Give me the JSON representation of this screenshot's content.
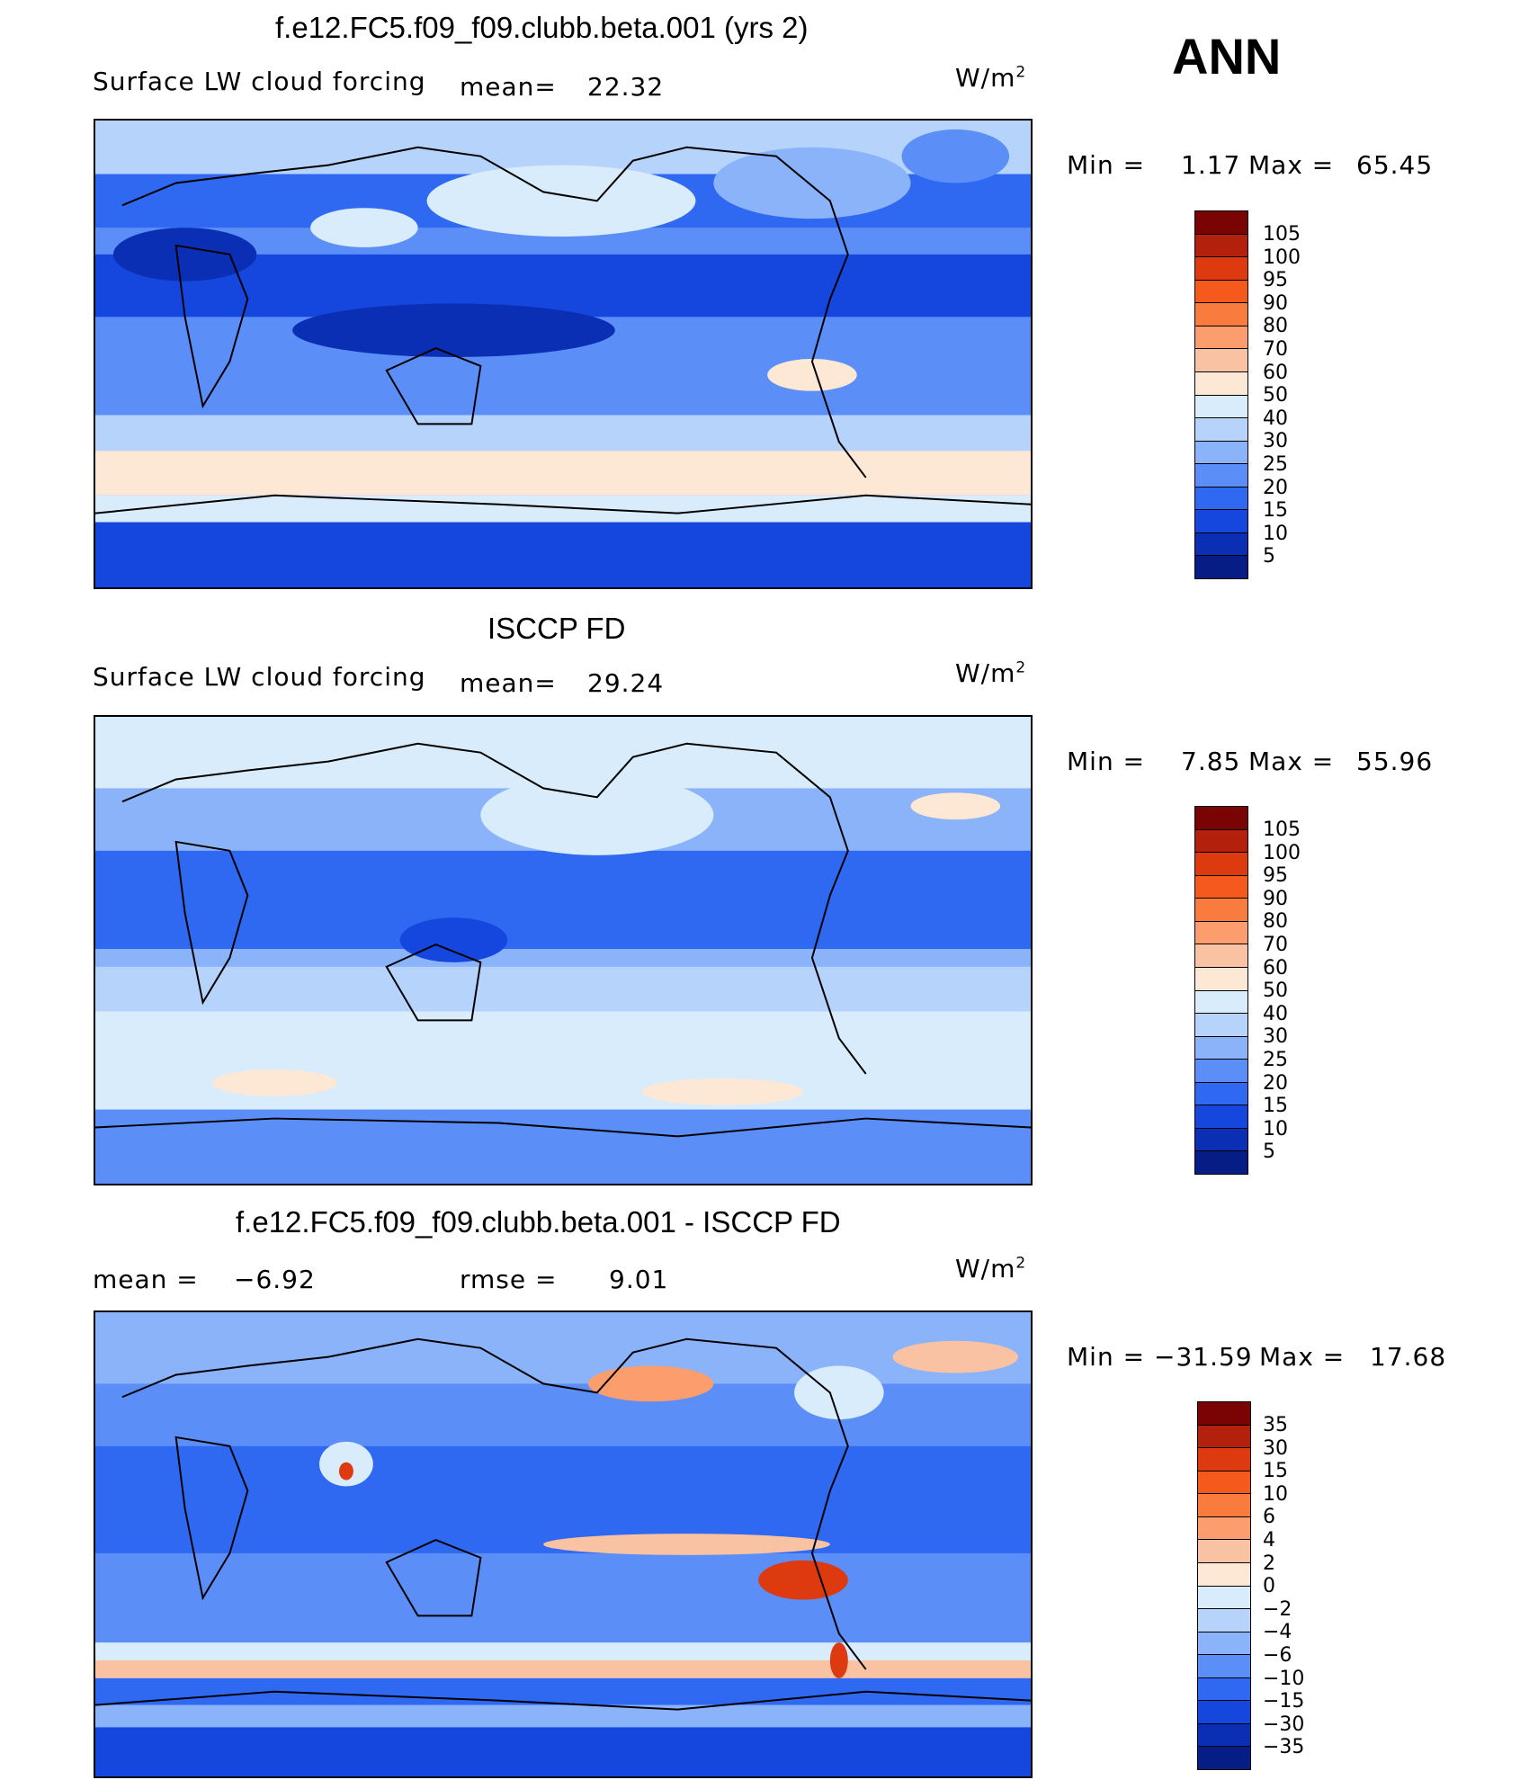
{
  "season": "ANN",
  "units": {
    "base": "W/m",
    "exp": "2"
  },
  "chart_data": [
    {
      "type": "heatmap",
      "title": "f.e12.FC5.f09_f09.clubb.beta.001 (yrs 2)",
      "variable": "Surface LW cloud forcing",
      "mean_label": "mean=",
      "mean": "22.32",
      "min_label": "Min =",
      "min": "1.17",
      "max_label": "Max =",
      "max": "65.45",
      "colorbar_labels": [
        "105",
        "100",
        "95",
        "90",
        "80",
        "70",
        "60",
        "50",
        "40",
        "30",
        "25",
        "20",
        "15",
        "10",
        "5"
      ],
      "colorbar_colors": [
        "#7a0403",
        "#b3200c",
        "#de3a0f",
        "#f55a1c",
        "#fa7b3e",
        "#fb9d6c",
        "#f9c2a2",
        "#fde8d6",
        "#d9ecfb",
        "#b5d3fb",
        "#8ab3fa",
        "#5b8ef7",
        "#2f69f2",
        "#1547df",
        "#0a2fb5",
        "#051d85"
      ]
    },
    {
      "type": "heatmap",
      "title": "ISCCP FD",
      "variable": "Surface LW cloud forcing",
      "mean_label": "mean=",
      "mean": "29.24",
      "min_label": "Min =",
      "min": "7.85",
      "max_label": "Max =",
      "max": "55.96",
      "colorbar_labels": [
        "105",
        "100",
        "95",
        "90",
        "80",
        "70",
        "60",
        "50",
        "40",
        "30",
        "25",
        "20",
        "15",
        "10",
        "5"
      ],
      "colorbar_colors": [
        "#7a0403",
        "#b3200c",
        "#de3a0f",
        "#f55a1c",
        "#fa7b3e",
        "#fb9d6c",
        "#f9c2a2",
        "#fde8d6",
        "#d9ecfb",
        "#b5d3fb",
        "#8ab3fa",
        "#5b8ef7",
        "#2f69f2",
        "#1547df",
        "#0a2fb5",
        "#051d85"
      ]
    },
    {
      "type": "heatmap",
      "title": "f.e12.FC5.f09_f09.clubb.beta.001 - ISCCP FD",
      "mean_label": "mean =",
      "mean": "−6.92",
      "rmse_label": "rmse =",
      "rmse": "9.01",
      "min_label": "Min =",
      "min": "−31.59",
      "max_label": "Max =",
      "max": "17.68",
      "colorbar_labels": [
        "35",
        "30",
        "15",
        "10",
        "6",
        "4",
        "2",
        "0",
        "−2",
        "−4",
        "−6",
        "−10",
        "−15",
        "−30",
        "−35"
      ],
      "colorbar_colors": [
        "#7a0403",
        "#b3200c",
        "#de3a0f",
        "#f55a1c",
        "#fa7b3e",
        "#fb9d6c",
        "#f9c2a2",
        "#fde8d6",
        "#d9ecfb",
        "#b5d3fb",
        "#8ab3fa",
        "#5b8ef7",
        "#2f69f2",
        "#1547df",
        "#0a2fb5",
        "#051d85"
      ]
    }
  ]
}
